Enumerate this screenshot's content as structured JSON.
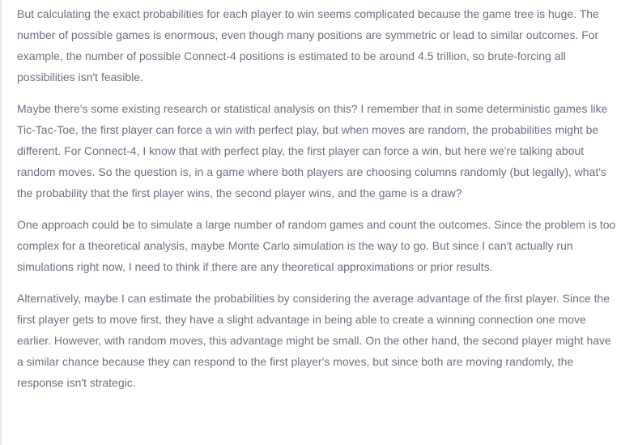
{
  "thinking": {
    "paragraphs": [
      "But calculating the exact probabilities for each player to win seems complicated because the game tree is huge. The number of possible games is enormous, even though many positions are symmetric or lead to similar outcomes. For example, the number of possible Connect-4 positions is estimated to be around 4.5 trillion, so brute-forcing all possibilities isn't feasible.",
      "Maybe there's some existing research or statistical analysis on this? I remember that in some deterministic games like Tic-Tac-Toe, the first player can force a win with perfect play, but when moves are random, the probabilities might be different. For Connect-4, I know that with perfect play, the first player can force a win, but here we're talking about random moves. So the question is, in a game where both players are choosing columns randomly (but legally), what's the probability that the first player wins, the second player wins, and the game is a draw?",
      "One approach could be to simulate a large number of random games and count the outcomes. Since the problem is too complex for a theoretical analysis, maybe Monte Carlo simulation is the way to go. But since I can't actually run simulations right now, I need to think if there are any theoretical approximations or prior results.",
      "Alternatively, maybe I can estimate the probabilities by considering the average advantage of the first player. Since the first player gets to move first, they have a slight advantage in being able to create a winning connection one move earlier. However, with random moves, this advantage might be small. On the other hand, the second player might have a similar chance because they can respond to the first player's moves, but since both are moving randomly, the response isn't strategic."
    ]
  }
}
